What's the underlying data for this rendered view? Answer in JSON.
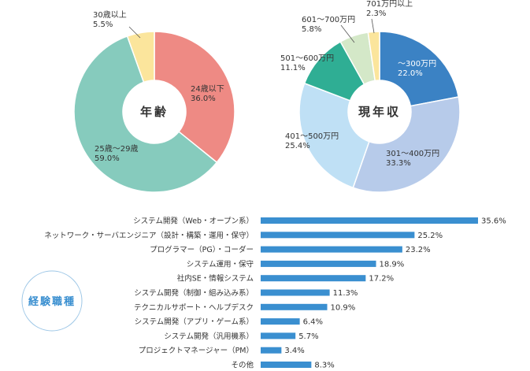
{
  "chart_data": [
    {
      "type": "pie",
      "title": "年齢",
      "slices": [
        {
          "label": "24歳以下",
          "value": 36.0,
          "value_text": "36.0%",
          "color": "#ee8a84"
        },
        {
          "label": "25歳～29歳",
          "value": 59.0,
          "value_text": "59.0%",
          "color": "#86cbbd"
        },
        {
          "label": "30歳以上",
          "value": 5.5,
          "value_text": "5.5%",
          "color": "#fbe59c"
        }
      ]
    },
    {
      "type": "pie",
      "title": "現年収",
      "slices": [
        {
          "label": "～300万円",
          "value": 22.0,
          "value_text": "22.0%",
          "color": "#3b82c4"
        },
        {
          "label": "301～400万円",
          "value": 33.3,
          "value_text": "33.3%",
          "color": "#b7cbea"
        },
        {
          "label": "401～500万円",
          "value": 25.4,
          "value_text": "25.4%",
          "color": "#bfe0f5"
        },
        {
          "label": "501～600万円",
          "value": 11.1,
          "value_text": "11.1%",
          "color": "#2fae94"
        },
        {
          "label": "601～700万円",
          "value": 5.8,
          "value_text": "5.8%",
          "color": "#d4e8c8"
        },
        {
          "label": "701万円以上",
          "value": 2.3,
          "value_text": "2.3%",
          "color": "#fbe59c"
        }
      ]
    },
    {
      "type": "bar",
      "orientation": "horizontal",
      "title": "経験職種",
      "color": "#3a8fd0",
      "categories": [
        "システム開発（Web・オープン系）",
        "ネットワーク・サーバエンジニア（設計・構築・運用・保守）",
        "プログラマー（PG）・コーダー",
        "システム運用・保守",
        "社内SE・情報システム",
        "システム開発（制御・組み込み系）",
        "テクニカルサポート・ヘルプデスク",
        "システム開発（アプリ・ゲーム系）",
        "システム開発（汎用機系）",
        "プロジェクトマネージャー（PM）",
        "その他"
      ],
      "values": [
        35.6,
        25.2,
        23.2,
        18.9,
        17.2,
        11.3,
        10.9,
        6.4,
        5.7,
        3.4,
        8.3
      ],
      "value_texts": [
        "35.6%",
        "25.2%",
        "23.2%",
        "18.9%",
        "17.2%",
        "11.3%",
        "10.9%",
        "6.4%",
        "5.7%",
        "3.4%",
        "8.3%"
      ]
    }
  ]
}
